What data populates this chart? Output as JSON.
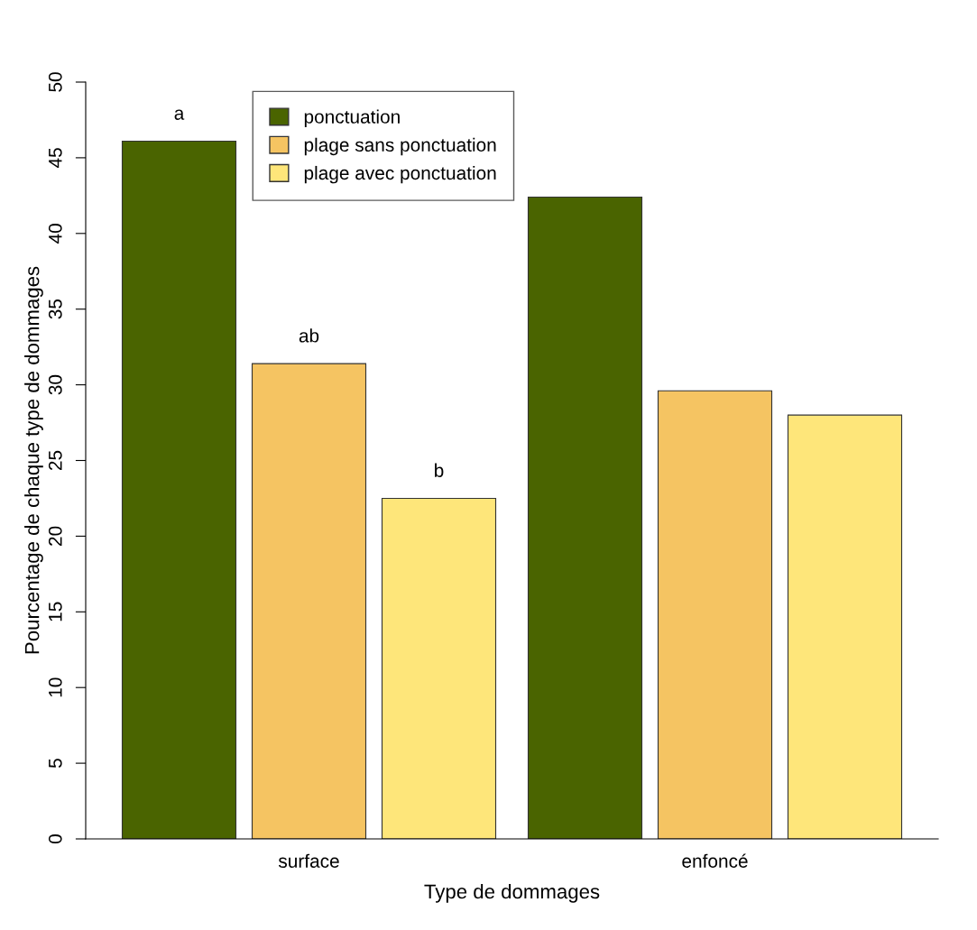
{
  "chart_data": {
    "type": "bar",
    "xlabel": "Type de dommages",
    "ylabel": "Pourcentage de chaque type de dommages",
    "categories": [
      "surface",
      "enfoncé"
    ],
    "series": [
      {
        "name": "ponctuation",
        "color": "#4a6400",
        "values": [
          46.1,
          42.4
        ],
        "value_labels": [
          "a",
          null
        ]
      },
      {
        "name": "plage sans ponctuation",
        "color": "#f5c462",
        "values": [
          31.4,
          29.6
        ],
        "value_labels": [
          "ab",
          null
        ]
      },
      {
        "name": "plage avec ponctuation",
        "color": "#fee67a",
        "values": [
          22.5,
          28.0
        ],
        "value_labels": [
          "b",
          null
        ]
      }
    ],
    "ylim": [
      0,
      50
    ],
    "yticks": [
      0,
      5,
      10,
      15,
      20,
      25,
      30,
      35,
      40,
      45,
      50
    ],
    "grid": false,
    "legend": "top left"
  }
}
